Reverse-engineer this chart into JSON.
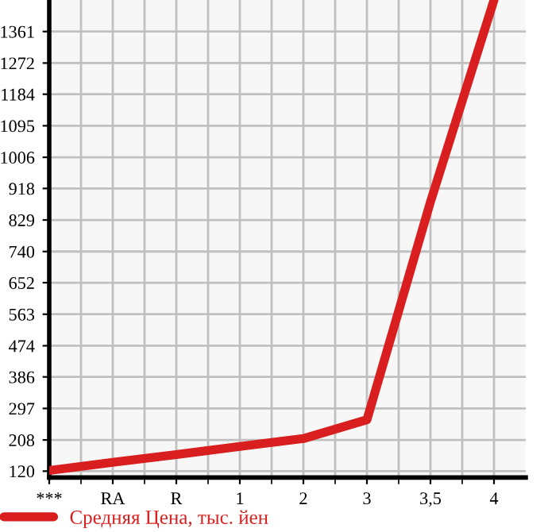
{
  "chart_data": {
    "type": "line",
    "categories": [
      "***",
      "RA",
      "R",
      "1",
      "2",
      "3",
      "3,5",
      "4"
    ],
    "series": [
      {
        "name": "Средняя Цена, тыс. йен",
        "color": "#d81e1e",
        "values": [
          122,
          145,
          167,
          190,
          212,
          265,
          880,
          1450
        ]
      }
    ],
    "ylim": [
      102,
      1450
    ],
    "yticks": [
      120,
      208,
      297,
      386,
      474,
      563,
      652,
      740,
      829,
      918,
      1006,
      1095,
      1184,
      1272,
      1361
    ],
    "grid": true,
    "legend": "bottom left",
    "marker": "none",
    "line_style": "solid"
  }
}
